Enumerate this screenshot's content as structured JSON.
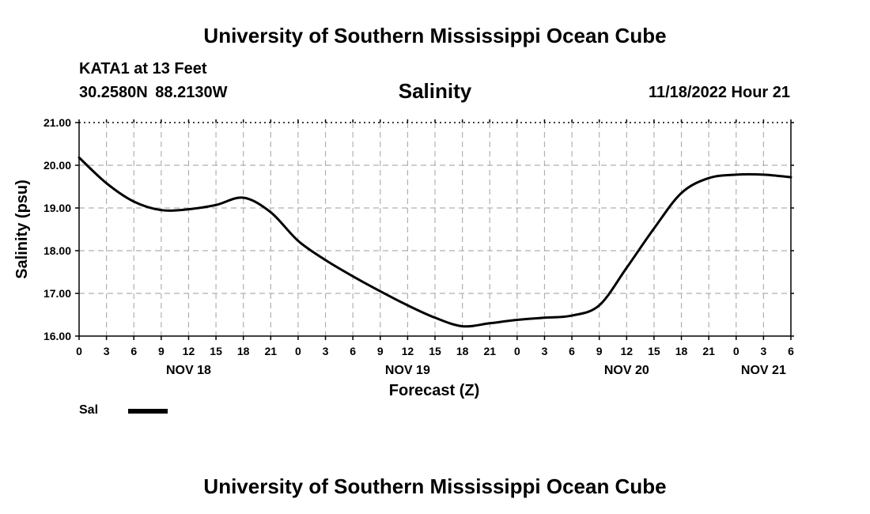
{
  "header": {
    "title": "University of Southern Mississippi Ocean Cube",
    "station": "KATA1 at 13 Feet",
    "coords": "30.2580N  88.2130W",
    "chart_title": "Salinity",
    "timestamp": "11/18/2022 Hour 21"
  },
  "footer": {
    "title": "University of Southern Mississippi Ocean Cube"
  },
  "legend": {
    "label": "Sal"
  },
  "colors": {
    "line": "#000000",
    "grid": "#b0b0b0"
  },
  "chart_data": {
    "type": "line",
    "title": "Salinity",
    "xlabel": "Forecast (Z)",
    "ylabel": "Salinity (psu)",
    "xlim": [
      0,
      78
    ],
    "ylim": [
      16.0,
      21.0
    ],
    "y_ticks": [
      "16.00",
      "17.00",
      "18.00",
      "19.00",
      "20.00",
      "21.00"
    ],
    "x_tick_labels": [
      "0",
      "3",
      "6",
      "9",
      "12",
      "15",
      "18",
      "21",
      "0",
      "3",
      "6",
      "9",
      "12",
      "15",
      "18",
      "21",
      "0",
      "3",
      "6",
      "9",
      "12",
      "15",
      "18",
      "21",
      "0",
      "3",
      "6"
    ],
    "day_labels": [
      {
        "text": "NOV 18",
        "x": 12
      },
      {
        "text": "NOV 19",
        "x": 36
      },
      {
        "text": "NOV 20",
        "x": 60
      },
      {
        "text": "NOV 21",
        "x": 75
      }
    ],
    "grid": true,
    "series": [
      {
        "name": "Sal",
        "x": [
          0,
          3,
          6,
          9,
          12,
          15,
          18,
          21,
          24,
          27,
          30,
          33,
          36,
          39,
          42,
          45,
          48,
          51,
          54,
          57,
          60,
          63,
          66,
          69,
          72,
          75,
          78
        ],
        "values": [
          20.18,
          19.58,
          19.15,
          18.95,
          18.97,
          19.07,
          19.24,
          18.9,
          18.23,
          17.78,
          17.4,
          17.05,
          16.72,
          16.43,
          16.23,
          16.3,
          16.38,
          16.43,
          16.48,
          16.72,
          17.6,
          18.52,
          19.35,
          19.7,
          19.78,
          19.78,
          19.72
        ]
      }
    ]
  }
}
